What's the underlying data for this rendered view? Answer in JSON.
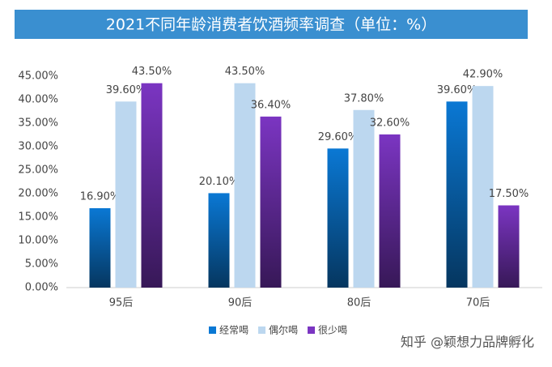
{
  "chart_data": {
    "type": "bar",
    "title": "2021不同年龄消费者饮酒频率调查（单位：%）",
    "categories": [
      "95后",
      "90后",
      "80后",
      "70后"
    ],
    "series": [
      {
        "name": "经常喝",
        "color": "#0a78d4",
        "values": [
          16.9,
          20.1,
          29.6,
          39.6
        ],
        "value_labels": [
          "16.90%",
          "20.10%",
          "29.60%",
          "39.60%"
        ]
      },
      {
        "name": "偶尔喝",
        "color": "#bcd7ef",
        "values": [
          39.6,
          43.5,
          37.8,
          42.9
        ],
        "value_labels": [
          "39.60%",
          "43.50%",
          "37.80%",
          "42.90%"
        ]
      },
      {
        "name": "很少喝",
        "color": "#7b35c2",
        "values": [
          43.5,
          36.4,
          32.6,
          17.5
        ],
        "value_labels": [
          "43.50%",
          "36.40%",
          "32.60%",
          "17.50%"
        ]
      }
    ],
    "ylim": [
      0,
      45
    ],
    "yticks": [
      {
        "value": 0,
        "label": "0.00%"
      },
      {
        "value": 5,
        "label": "5.00%"
      },
      {
        "value": 10,
        "label": "10.00%"
      },
      {
        "value": 15,
        "label": "15.00%"
      },
      {
        "value": 20,
        "label": "20.00%"
      },
      {
        "value": 25,
        "label": "25.00%"
      },
      {
        "value": 30,
        "label": "30.00%"
      },
      {
        "value": 35,
        "label": "35.00%"
      },
      {
        "value": 40,
        "label": "40.00%"
      },
      {
        "value": 45,
        "label": "45.00%"
      }
    ],
    "grid": false,
    "legend": "bottom",
    "watermark": "知乎 @颖想力品牌孵化"
  }
}
